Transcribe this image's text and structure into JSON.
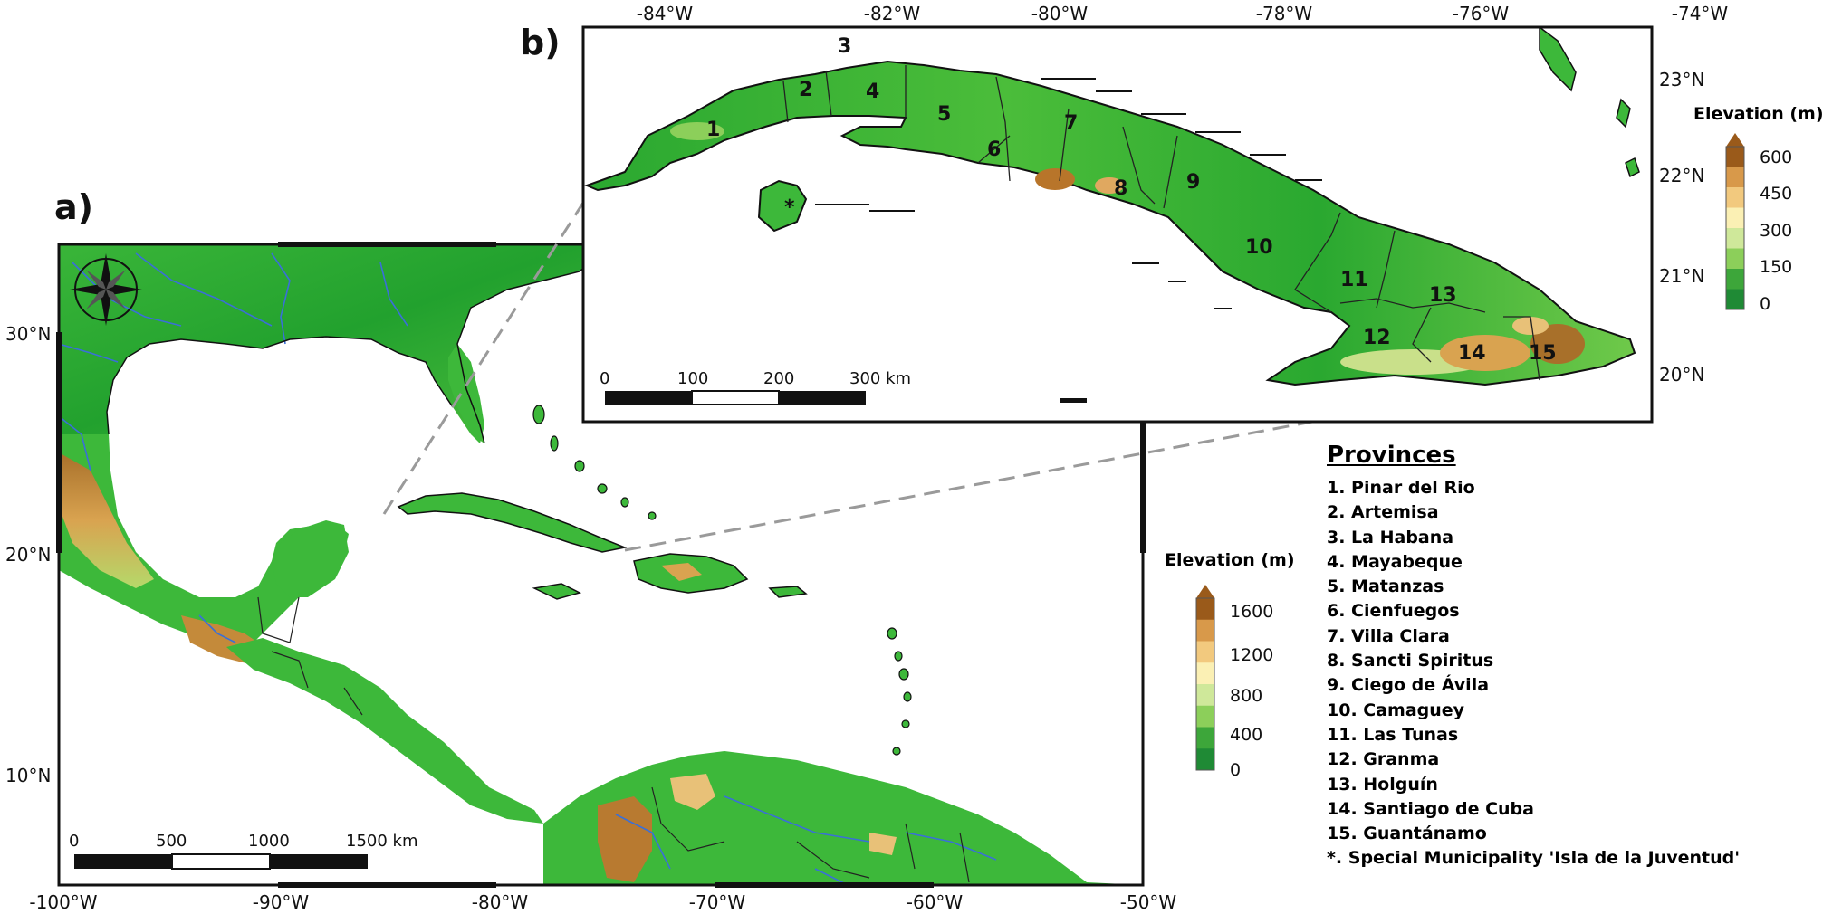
{
  "panels": {
    "a": {
      "label": "a)"
    },
    "b": {
      "label": "b)"
    }
  },
  "map_a": {
    "lat_ticks": [
      "30°N",
      "20°N",
      "10°N"
    ],
    "lon_ticks": [
      "-100°W",
      "-90°W",
      "-80°W",
      "-70°W",
      "-60°W",
      "-50°W"
    ],
    "scale_bar": {
      "labels": [
        "0",
        "500",
        "1000",
        "1500 km"
      ]
    },
    "elevation_legend": {
      "title": "Elevation (m)",
      "ticks": [
        "1600",
        "1200",
        "800",
        "400",
        "0"
      ],
      "colors": [
        "#9a5a1a",
        "#d8994a",
        "#f2c97e",
        "#fbf0b4",
        "#cfe89a",
        "#8ccf5a",
        "#3da63a",
        "#1f8a35"
      ]
    }
  },
  "map_b": {
    "lat_ticks": [
      "23°N",
      "22°N",
      "21°N",
      "20°N"
    ],
    "lon_ticks": [
      "-84°W",
      "-82°W",
      "-80°W",
      "-78°W",
      "-76°W",
      "-74°W"
    ],
    "scale_bar": {
      "labels": [
        "0",
        "100",
        "200",
        "300 km"
      ]
    },
    "elevation_legend": {
      "title": "Elevation (m)",
      "ticks": [
        "600",
        "450",
        "300",
        "150",
        "0"
      ],
      "colors": [
        "#9a5a1a",
        "#d8994a",
        "#f2c97e",
        "#fbf0b4",
        "#cfe89a",
        "#8ccf5a",
        "#3da63a",
        "#1f8a35"
      ]
    },
    "province_numbers": [
      "1",
      "2",
      "3",
      "4",
      "5",
      "6",
      "7",
      "8",
      "9",
      "10",
      "11",
      "12",
      "13",
      "14",
      "15",
      "*"
    ]
  },
  "provinces": {
    "title": "Provinces",
    "items": [
      "1. Pinar del Rio",
      "2. Artemisa",
      "3. La Habana",
      "4. Mayabeque",
      "5. Matanzas",
      "6. Cienfuegos",
      "7. Villa Clara",
      "8. Sancti Spiritus",
      "9. Ciego de Ávila",
      "10. Camaguey",
      "11. Las Tunas",
      "12. Granma",
      "13. Holguín",
      "14. Santiago de Cuba",
      "15. Guantánamo",
      "*. Special Municipality 'Isla de la Juventud'"
    ]
  },
  "colors": {
    "land_low": "#1f9a2e",
    "land_mid": "#8ccf5a",
    "land_high": "#9a5a1a",
    "river": "#3a6fd8",
    "zoom_line": "#9a9a9a"
  }
}
